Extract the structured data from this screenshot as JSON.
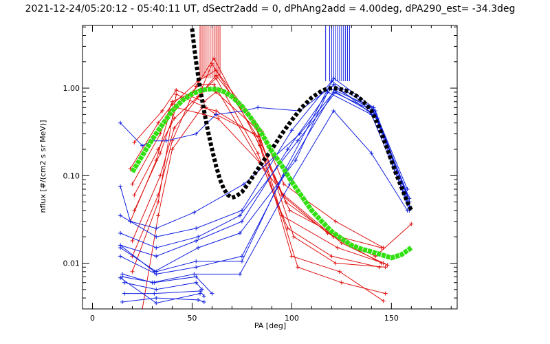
{
  "chart_data": {
    "type": "line",
    "title": "2021-12-24/05:20:12 - 05:40:11 UT, dSectr2add = 0, dPhAng2add = 4.00deg, dPA290_est= -34.3deg",
    "xlabel": "PA [deg]",
    "ylabel": "nflux [#/(cm2 s sr MeV)]",
    "xlim": [
      -5,
      183
    ],
    "ylim": [
      0.003,
      5.2
    ],
    "yscale": "log",
    "grid": false,
    "xticks": [
      {
        "value": 0,
        "label": "0"
      },
      {
        "value": 50,
        "label": "50"
      },
      {
        "value": 100,
        "label": "100"
      },
      {
        "value": 150,
        "label": "150"
      }
    ],
    "yticks": [
      {
        "value": 0.01,
        "label": "0.01"
      },
      {
        "value": 0.1,
        "label": "0.10"
      },
      {
        "value": 1,
        "label": "1.00"
      }
    ],
    "colors": {
      "red_traces": "#e01010",
      "blue_traces": "#1020e0",
      "black_fit": "#000000",
      "green_fit": "#30e010"
    },
    "series": [
      {
        "color": "red",
        "kind": "trace",
        "x": [
          19,
          33,
          40,
          53,
          62,
          85,
          96,
          122,
          146
        ],
        "y": [
          0.12,
          0.4,
          0.65,
          1.2,
          1.6,
          0.32,
          0.08,
          0.03,
          0.015
        ]
      },
      {
        "color": "red",
        "kind": "trace",
        "x": [
          20,
          34,
          40,
          55,
          60,
          84,
          97,
          121,
          145
        ],
        "y": [
          0.08,
          0.3,
          0.7,
          1.0,
          1.9,
          0.25,
          0.05,
          0.02,
          0.01
        ]
      },
      {
        "color": "red",
        "kind": "trace",
        "x": [
          21,
          33,
          41,
          53,
          62,
          83,
          95,
          123,
          146
        ],
        "y": [
          0.06,
          0.2,
          0.45,
          0.8,
          1.3,
          0.18,
          0.035,
          0.015,
          0.01
        ]
      },
      {
        "color": "red",
        "kind": "trace",
        "x": [
          19,
          32,
          39,
          54,
          61,
          86,
          98,
          120,
          144
        ],
        "y": [
          0.03,
          0.15,
          0.55,
          1.1,
          1.1,
          0.12,
          0.025,
          0.012,
          0.009
        ]
      },
      {
        "color": "red",
        "kind": "trace",
        "x": [
          20,
          34,
          41,
          55,
          62,
          82,
          101,
          122,
          147
        ],
        "y": [
          0.018,
          0.1,
          0.35,
          0.9,
          1.4,
          0.38,
          0.02,
          0.01,
          0.009
        ]
      },
      {
        "color": "red",
        "kind": "trace",
        "x": [
          20,
          33,
          40,
          52,
          61,
          84,
          100,
          124,
          146
        ],
        "y": [
          0.012,
          0.06,
          0.25,
          1.05,
          2.2,
          0.22,
          0.012,
          0.008,
          0.0037
        ]
      },
      {
        "color": "red",
        "kind": "trace",
        "x": [
          25,
          33,
          40,
          55,
          62,
          83,
          103,
          125,
          147
        ],
        "y": [
          0.003,
          0.035,
          0.2,
          0.6,
          0.55,
          0.28,
          0.009,
          0.006,
          0.0045
        ]
      },
      {
        "color": "red",
        "kind": "trace",
        "x": [
          21,
          35,
          42,
          56,
          62,
          82,
          95,
          118,
          142,
          160
        ],
        "y": [
          0.24,
          0.55,
          0.95,
          0.7,
          0.9,
          0.35,
          0.06,
          0.022,
          0.012,
          0.028
        ]
      },
      {
        "color": "red",
        "kind": "trace",
        "x": [
          20,
          33,
          42,
          57,
          62,
          81,
          99,
          124,
          145
        ],
        "y": [
          0.008,
          0.05,
          0.85,
          0.6,
          0.5,
          0.3,
          0.04,
          0.02,
          0.015
        ]
      },
      {
        "color": "red",
        "kind": "trace",
        "x": [
          21,
          34,
          42,
          56,
          63,
          84,
          96,
          125,
          148
        ],
        "y": [
          0.04,
          0.18,
          0.6,
          0.5,
          0.45,
          0.14,
          0.06,
          0.017,
          0.0095
        ]
      },
      {
        "color": "blue",
        "kind": "trace",
        "x": [
          14,
          25,
          30,
          37,
          52,
          62,
          76,
          83,
          104,
          119,
          141,
          158
        ],
        "y": [
          0.4,
          0.22,
          0.25,
          0.25,
          0.3,
          0.5,
          0.55,
          0.6,
          0.55,
          1.0,
          0.6,
          0.07
        ]
      },
      {
        "color": "blue",
        "kind": "trace",
        "x": [
          14,
          19,
          32,
          51,
          76,
          104,
          121,
          141,
          158
        ],
        "y": [
          0.075,
          0.03,
          0.025,
          0.038,
          0.08,
          0.3,
          0.9,
          0.55,
          0.06
        ]
      },
      {
        "color": "blue",
        "kind": "trace",
        "x": [
          14,
          32,
          52,
          75,
          100,
          120,
          142,
          159
        ],
        "y": [
          0.035,
          0.02,
          0.025,
          0.04,
          0.33,
          1.2,
          0.55,
          0.05
        ]
      },
      {
        "color": "blue",
        "kind": "trace",
        "x": [
          14,
          32,
          53,
          74,
          103,
          122,
          142,
          159
        ],
        "y": [
          0.022,
          0.015,
          0.02,
          0.035,
          0.25,
          0.9,
          0.5,
          0.055
        ]
      },
      {
        "color": "blue",
        "kind": "trace",
        "x": [
          14,
          32,
          52,
          75,
          98,
          121,
          143,
          158
        ],
        "y": [
          0.016,
          0.012,
          0.018,
          0.03,
          0.2,
          1.1,
          0.45,
          0.06
        ]
      },
      {
        "color": "blue",
        "kind": "trace",
        "x": [
          14,
          31,
          53,
          74,
          102,
          118,
          140,
          158
        ],
        "y": [
          0.016,
          0.008,
          0.015,
          0.022,
          0.15,
          0.9,
          0.5,
          0.05
        ]
      },
      {
        "color": "blue",
        "kind": "trace",
        "x": [
          14,
          32,
          52,
          75,
          97,
          121,
          141,
          159
        ],
        "y": [
          0.015,
          0.008,
          0.0105,
          0.0105,
          0.12,
          1.3,
          0.6,
          0.045
        ]
      },
      {
        "color": "blue",
        "kind": "trace",
        "x": [
          14,
          32,
          52,
          75,
          96,
          122,
          141,
          159
        ],
        "y": [
          0.012,
          0.0075,
          0.009,
          0.012,
          0.1,
          1.0,
          0.55,
          0.04
        ]
      },
      {
        "color": "blue",
        "kind": "trace",
        "x": [
          15,
          30,
          51,
          74,
          99,
          121,
          140,
          158
        ],
        "y": [
          0.0075,
          0.006,
          0.0075,
          0.0075,
          0.08,
          0.55,
          0.18,
          0.04
        ]
      },
      {
        "color": "blue",
        "kind": "trace",
        "x": [
          15,
          31,
          52,
          60
        ],
        "y": [
          0.007,
          0.006,
          0.007,
          0.0045
        ]
      },
      {
        "color": "blue",
        "kind": "trace",
        "x": [
          16,
          32,
          52,
          55
        ],
        "y": [
          0.006,
          0.005,
          0.006,
          0.005
        ]
      },
      {
        "color": "blue",
        "kind": "trace",
        "x": [
          16,
          31,
          54,
          56
        ],
        "y": [
          0.0045,
          0.0045,
          0.0048,
          0.0042
        ]
      },
      {
        "color": "blue",
        "kind": "trace",
        "x": [
          15,
          32,
          53,
          56
        ],
        "y": [
          0.0036,
          0.004,
          0.0038,
          0.0036
        ]
      },
      {
        "color": "blue",
        "kind": "trace",
        "x": [
          14,
          32,
          54
        ],
        "y": [
          0.0068,
          0.0035,
          0.0045
        ]
      },
      {
        "color": "black",
        "kind": "fit",
        "x": [
          50,
          51,
          52,
          53,
          54,
          56,
          58,
          60,
          62,
          64,
          66,
          68,
          70,
          72,
          75,
          78,
          82,
          86,
          90,
          95,
          100,
          105,
          110,
          115,
          118,
          121,
          124,
          127,
          130,
          133,
          136,
          140,
          144,
          148,
          152,
          156,
          158,
          160
        ],
        "y": [
          4.8,
          3.0,
          2.0,
          1.4,
          1.0,
          0.55,
          0.32,
          0.2,
          0.13,
          0.09,
          0.07,
          0.06,
          0.056,
          0.058,
          0.065,
          0.08,
          0.11,
          0.15,
          0.2,
          0.3,
          0.43,
          0.6,
          0.78,
          0.93,
          0.99,
          1.0,
          0.98,
          0.94,
          0.88,
          0.8,
          0.7,
          0.55,
          0.35,
          0.2,
          0.11,
          0.065,
          0.05,
          0.04
        ]
      },
      {
        "color": "green",
        "kind": "fit",
        "x": [
          20,
          25,
          30,
          35,
          40,
          45,
          50,
          55,
          60,
          63,
          66,
          70,
          75,
          80,
          85,
          90,
          95,
          100,
          105,
          110,
          115,
          120,
          125,
          130,
          135,
          140,
          145,
          150,
          155,
          160
        ],
        "y": [
          0.11,
          0.17,
          0.26,
          0.38,
          0.55,
          0.72,
          0.86,
          0.95,
          0.98,
          0.96,
          0.91,
          0.8,
          0.62,
          0.44,
          0.3,
          0.19,
          0.13,
          0.085,
          0.058,
          0.04,
          0.03,
          0.023,
          0.019,
          0.016,
          0.0145,
          0.0135,
          0.0125,
          0.0115,
          0.0125,
          0.015
        ]
      }
    ]
  }
}
